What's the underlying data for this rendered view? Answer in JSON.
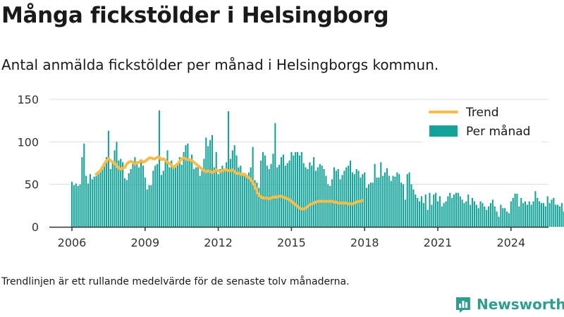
{
  "title": "Många fickstölder i Helsingborg",
  "subtitle": "Antal anmälda fickstölder per månad i Helsingborgs kommun.",
  "note": "Trendlinjen är ett rullande medelvärde för de senaste tolv månaderna.",
  "logo": {
    "text": "Newsworthy",
    "icon": "bar-chart-logo-icon"
  },
  "colors": {
    "bar": "#13a398",
    "trend": "#f9bc48",
    "axis": "#333333",
    "grid": "#dddddd",
    "logo": "#2e9e8e"
  },
  "chart_data": {
    "type": "bar",
    "title": "Många fickstölder i Helsingborg",
    "subtitle": "Antal anmälda fickstölder per månad i Helsingborgs kommun.",
    "xlabel": "",
    "ylabel": "",
    "ylim": [
      0,
      150
    ],
    "yticks": [
      "0",
      "50",
      "100",
      "150"
    ],
    "xticks": [
      "2006",
      "2009",
      "2012",
      "2015",
      "2018",
      "2021",
      "2024"
    ],
    "x_start": "2006-01",
    "grid": "horizontal",
    "legend_position": "top-right",
    "series": [
      {
        "name": "Per månad",
        "kind": "bar",
        "values": [
          53,
          49,
          51,
          48,
          50,
          82,
          98,
          60,
          51,
          62,
          56,
          59,
          60,
          62,
          66,
          70,
          74,
          82,
          113,
          68,
          76,
          90,
          100,
          78,
          80,
          76,
          57,
          55,
          63,
          68,
          75,
          82,
          77,
          70,
          78,
          72,
          58,
          44,
          49,
          49,
          66,
          72,
          74,
          137,
          61,
          66,
          80,
          90,
          70,
          78,
          72,
          70,
          74,
          82,
          73,
          88,
          96,
          98,
          80,
          85,
          68,
          70,
          72,
          60,
          66,
          80,
          105,
          95,
          102,
          108,
          70,
          88,
          62,
          68,
          72,
          66,
          76,
          136,
          80,
          90,
          96,
          84,
          70,
          72,
          62,
          60,
          58,
          64,
          70,
          94,
          55,
          52,
          46,
          78,
          88,
          84,
          72,
          68,
          74,
          86,
          122,
          70,
          73,
          82,
          85,
          72,
          75,
          78,
          88,
          84,
          88,
          88,
          84,
          88,
          75,
          70,
          68,
          76,
          72,
          82,
          66,
          70,
          74,
          72,
          68,
          60,
          50,
          48,
          56,
          70,
          66,
          68,
          56,
          61,
          66,
          70,
          72,
          78,
          64,
          62,
          68,
          66,
          58,
          62,
          64,
          46,
          50,
          52,
          52,
          74,
          58,
          58,
          76,
          60,
          64,
          69,
          60,
          54,
          60,
          59,
          64,
          62,
          52,
          50,
          32,
          62,
          64,
          50,
          44,
          38,
          34,
          30,
          36,
          28,
          38,
          20,
          40,
          26,
          38,
          40,
          30,
          36,
          24,
          28,
          30,
          36,
          40,
          34,
          38,
          40,
          40,
          36,
          32,
          28,
          30,
          38,
          26,
          34,
          30,
          26,
          22,
          30,
          28,
          24,
          20,
          24,
          28,
          32,
          24,
          18,
          12,
          26,
          22,
          22,
          18,
          16,
          30,
          34,
          39,
          39,
          24,
          34,
          28,
          30,
          26,
          30,
          26,
          30,
          42,
          34,
          30,
          28,
          28,
          24,
          36,
          28,
          32,
          34,
          26,
          26,
          24,
          28,
          18,
          16,
          22,
          42,
          28,
          26,
          30,
          28,
          26,
          24,
          26,
          30,
          30,
          33,
          34,
          32,
          28,
          47
        ]
      },
      {
        "name": "Trend",
        "kind": "line",
        "values": [
          62,
          64,
          66,
          70,
          74,
          78,
          80,
          78,
          76,
          75,
          72,
          69,
          68,
          69,
          70,
          74,
          76,
          77,
          76,
          74,
          75,
          76,
          78,
          76,
          77,
          79,
          81,
          81,
          80,
          80,
          82,
          82,
          79,
          80,
          78,
          76,
          75,
          72,
          70,
          72,
          74,
          77,
          80,
          81,
          80,
          79,
          79,
          78,
          76,
          74,
          72,
          70,
          68,
          66,
          65,
          66,
          65,
          64,
          65,
          67,
          66,
          65,
          66,
          67,
          67,
          66,
          66,
          67,
          65,
          63,
          63,
          62,
          62,
          62,
          59,
          58,
          56,
          52,
          48,
          42,
          37,
          35,
          34,
          34,
          34,
          33,
          34,
          35,
          35,
          35,
          36,
          36,
          35,
          34,
          33,
          32,
          30,
          28,
          26,
          24,
          22,
          21,
          21,
          22,
          24,
          26,
          27,
          28,
          29,
          30,
          30,
          30,
          30,
          30,
          30,
          30,
          30,
          29,
          29,
          28,
          28,
          28,
          28,
          28,
          27,
          27,
          27,
          28,
          29,
          30,
          30,
          31
        ]
      }
    ]
  }
}
